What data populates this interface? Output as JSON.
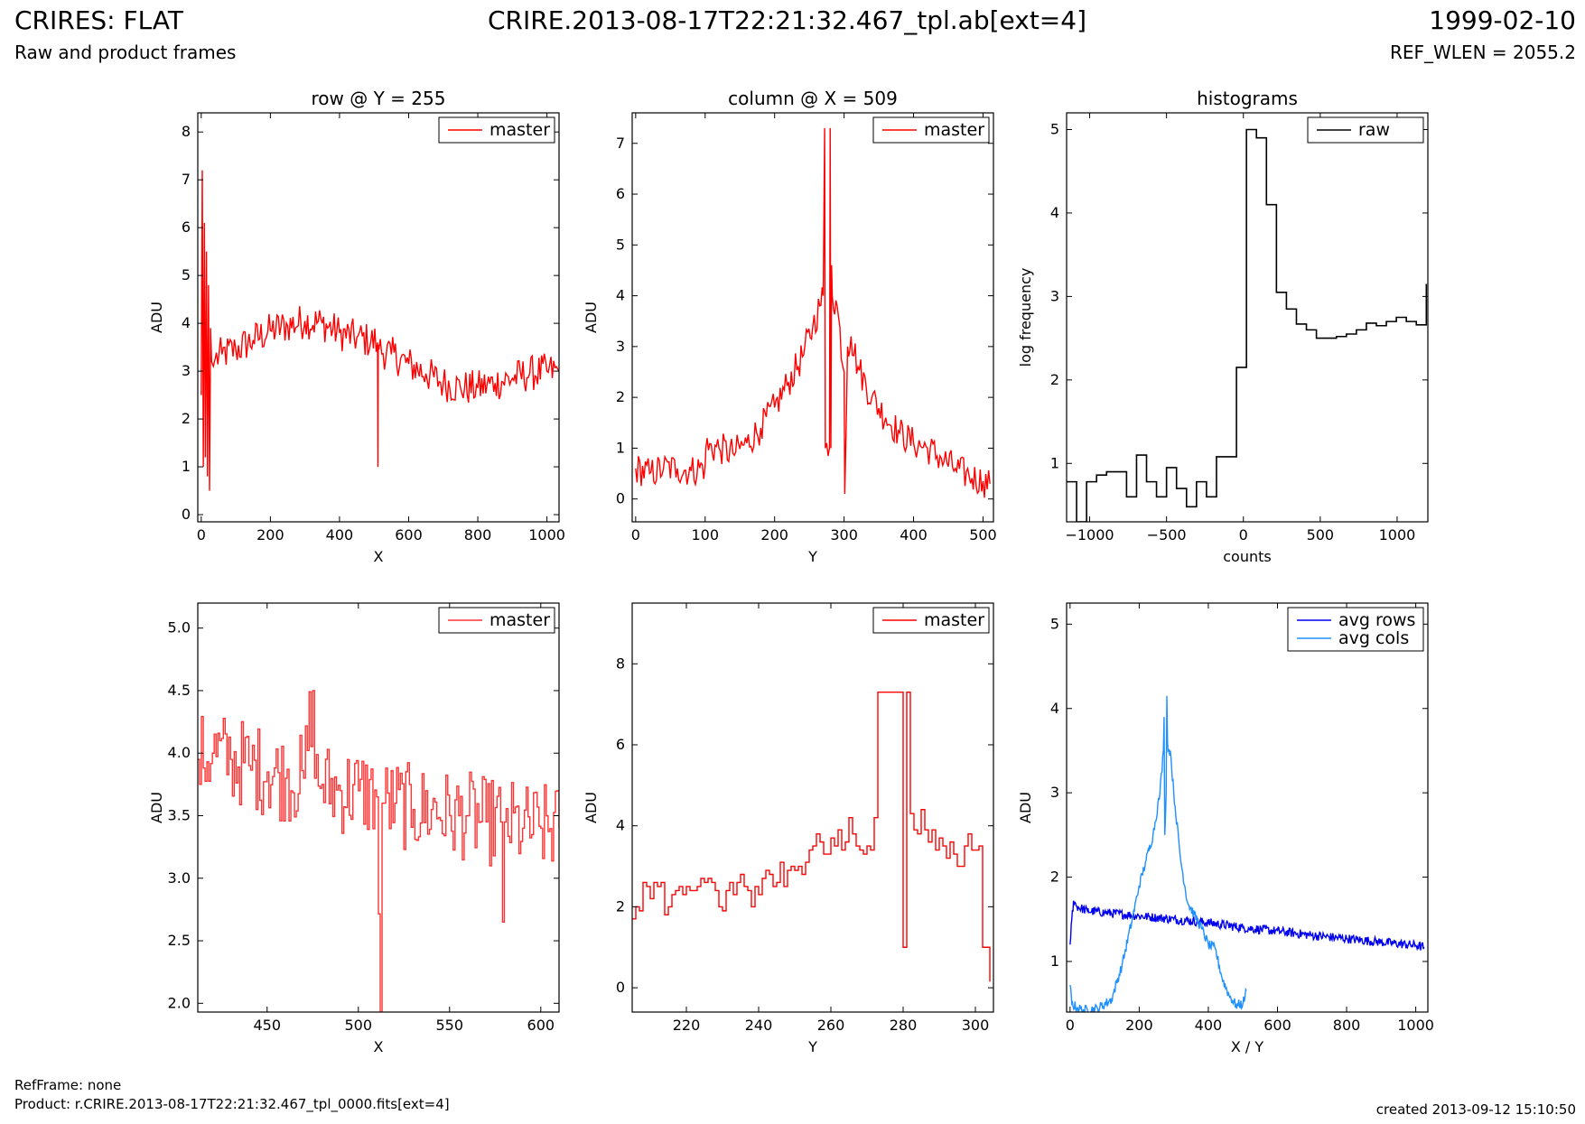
{
  "header": {
    "title_left": "CRIRES: FLAT",
    "title_center": "CRIRE.2013-08-17T22:21:32.467_tpl.ab[ext=4]",
    "title_right": "1999-02-10",
    "subtitle_left": "Raw and product frames",
    "subtitle_right": "REF_WLEN = 2055.2"
  },
  "footer": {
    "refframe": "RefFrame: none",
    "product": "Product: r.CRIRE.2013-08-17T22:21:32.467_tpl_0000.fits[ext=4]",
    "created": "created 2013-09-12 15:10:50"
  },
  "colors": {
    "red": "#ff0000",
    "light_red": "#ff3333",
    "blue": "#0000ee",
    "light_blue": "#1e90ff",
    "black": "#000000"
  },
  "chart_data": [
    {
      "type": "line",
      "title": "row @ Y = 255",
      "xlabel": "X",
      "ylabel": "ADU",
      "xlim": [
        -10,
        1035
      ],
      "ylim": [
        -0.15,
        8.4
      ],
      "xticks": [
        0,
        200,
        400,
        600,
        800,
        1000
      ],
      "yticks": [
        0,
        1,
        2,
        3,
        4,
        5,
        6,
        7,
        8
      ],
      "legend_loc": "top-right",
      "series": [
        {
          "name": "master",
          "color": "#ff0000",
          "noise": 0.38,
          "step": 4,
          "x": [
            0,
            3,
            6,
            9,
            12,
            15,
            18,
            21,
            24,
            27,
            30,
            35,
            40,
            60,
            100,
            150,
            200,
            250,
            300,
            350,
            400,
            450,
            510,
            511,
            512,
            513,
            514,
            550,
            600,
            650,
            700,
            750,
            800,
            850,
            900,
            950,
            1000,
            1035
          ],
          "y": [
            2.5,
            7.2,
            1.0,
            6.1,
            1.2,
            5.5,
            0.8,
            4.8,
            0.5,
            3.9,
            3.2,
            3.1,
            3.25,
            3.35,
            3.45,
            3.65,
            3.85,
            3.95,
            4.05,
            4.0,
            3.8,
            3.7,
            3.6,
            1.0,
            3.55,
            3.5,
            3.45,
            3.35,
            3.15,
            2.95,
            2.75,
            2.65,
            2.65,
            2.75,
            2.85,
            2.95,
            3.0,
            3.0
          ]
        }
      ]
    },
    {
      "type": "line",
      "title": "column @ X = 509",
      "xlabel": "Y",
      "ylabel": "ADU",
      "xlim": [
        -5,
        515
      ],
      "ylim": [
        -0.45,
        7.6
      ],
      "xticks": [
        0,
        100,
        200,
        300,
        400,
        500
      ],
      "yticks": [
        0,
        1,
        2,
        3,
        4,
        5,
        6,
        7
      ],
      "legend_loc": "top-right",
      "series": [
        {
          "name": "master",
          "color": "#ff0000",
          "noise": 0.32,
          "step": 2,
          "x": [
            0,
            20,
            40,
            60,
            80,
            100,
            101,
            120,
            140,
            160,
            180,
            200,
            220,
            240,
            255,
            265,
            270,
            272,
            273,
            279,
            280,
            281,
            282,
            283,
            290,
            300,
            301,
            305,
            310,
            320,
            340,
            360,
            380,
            400,
            420,
            440,
            460,
            480,
            500,
            510
          ],
          "y": [
            0.6,
            0.5,
            0.6,
            0.6,
            0.55,
            0.65,
            1.0,
            1.0,
            0.9,
            1.1,
            1.4,
            1.8,
            2.3,
            2.8,
            3.4,
            3.8,
            4.0,
            7.3,
            1.0,
            1.0,
            7.3,
            1.0,
            4.6,
            4.0,
            3.8,
            2.5,
            0.1,
            3.0,
            3.2,
            2.6,
            2.0,
            1.6,
            1.3,
            1.1,
            1.0,
            0.8,
            0.6,
            0.45,
            0.35,
            0.3
          ]
        }
      ]
    },
    {
      "type": "line",
      "title": "histograms",
      "xlabel": "counts",
      "ylabel": "log frequency",
      "xlim": [
        -1150,
        1200
      ],
      "ylim": [
        0.3,
        5.2
      ],
      "xticks": [
        -1000,
        -500,
        0,
        500,
        1000
      ],
      "yticks": [
        1,
        2,
        3,
        4,
        5
      ],
      "legend_loc": "top-right",
      "series": [
        {
          "name": "raw",
          "color": "#000000",
          "steps": true,
          "edges": [
            -1150,
            -1085,
            -1020,
            -955,
            -890,
            -825,
            -760,
            -695,
            -630,
            -565,
            -500,
            -435,
            -370,
            -305,
            -240,
            -175,
            -110,
            -45,
            20,
            85,
            150,
            215,
            280,
            345,
            410,
            475,
            540,
            605,
            670,
            735,
            800,
            865,
            930,
            995,
            1060,
            1125,
            1190
          ],
          "values": [
            0.78,
            0.3,
            0.78,
            0.86,
            0.9,
            0.9,
            0.6,
            1.1,
            0.78,
            0.6,
            0.95,
            0.7,
            0.48,
            0.78,
            0.6,
            1.08,
            1.08,
            2.15,
            5.0,
            4.9,
            4.1,
            3.05,
            2.85,
            2.67,
            2.6,
            2.5,
            2.5,
            2.52,
            2.55,
            2.6,
            2.68,
            2.65,
            2.7,
            2.75,
            2.7,
            2.66,
            3.15
          ]
        }
      ]
    },
    {
      "type": "line",
      "xlabel": "X",
      "ylabel": "ADU",
      "xlim": [
        412,
        610
      ],
      "ylim": [
        1.93,
        5.2
      ],
      "xticks": [
        450,
        500,
        550,
        600
      ],
      "yticks": [
        2.0,
        2.5,
        3.0,
        3.5,
        4.0,
        4.5,
        5.0
      ],
      "legend_loc": "top-right",
      "series": [
        {
          "name": "master",
          "color": "#ff3333",
          "noise": 0.36,
          "step": 1,
          "steps": true,
          "x": [
            412,
            420,
            430,
            440,
            450,
            460,
            470,
            475,
            476,
            480,
            490,
            500,
            510,
            512,
            513,
            514,
            520,
            530,
            540,
            550,
            560,
            570,
            578,
            579,
            580,
            590,
            600,
            610
          ],
          "y": [
            3.95,
            4.0,
            3.95,
            3.9,
            3.85,
            3.8,
            3.8,
            4.5,
            3.8,
            3.75,
            3.7,
            3.7,
            3.65,
            1.9,
            3.6,
            3.6,
            3.6,
            3.55,
            3.55,
            3.5,
            3.5,
            3.45,
            3.45,
            2.65,
            3.45,
            3.4,
            3.4,
            3.4
          ]
        }
      ]
    },
    {
      "type": "line",
      "xlabel": "Y",
      "ylabel": "ADU",
      "xlim": [
        205,
        305
      ],
      "ylim": [
        -0.6,
        9.5
      ],
      "xticks": [
        220,
        240,
        260,
        280,
        300
      ],
      "yticks": [
        0,
        2,
        4,
        6,
        8
      ],
      "legend_loc": "top-right",
      "series": [
        {
          "name": "master",
          "color": "#ff0000",
          "steps": true,
          "x": [
            205,
            206,
            207,
            208,
            209,
            210,
            211,
            212,
            213,
            214,
            215,
            216,
            217,
            218,
            219,
            220,
            221,
            222,
            223,
            224,
            225,
            226,
            227,
            228,
            229,
            230,
            231,
            232,
            233,
            234,
            235,
            236,
            237,
            238,
            239,
            240,
            241,
            242,
            243,
            244,
            245,
            246,
            247,
            248,
            249,
            250,
            251,
            252,
            253,
            254,
            255,
            256,
            257,
            258,
            259,
            260,
            261,
            262,
            263,
            264,
            265,
            266,
            267,
            268,
            269,
            270,
            271,
            272,
            273,
            280,
            281,
            282,
            283,
            284,
            285,
            286,
            287,
            288,
            289,
            290,
            291,
            292,
            293,
            294,
            295,
            296,
            297,
            298,
            299,
            300,
            301,
            302,
            303,
            304
          ],
          "y": [
            1.7,
            2.0,
            1.9,
            2.6,
            2.5,
            2.2,
            2.6,
            2.5,
            2.6,
            1.8,
            2.0,
            2.3,
            2.4,
            2.5,
            2.3,
            2.5,
            2.4,
            2.4,
            2.5,
            2.7,
            2.6,
            2.7,
            2.6,
            2.4,
            2.0,
            1.9,
            2.4,
            2.6,
            2.3,
            2.6,
            2.8,
            2.5,
            2.4,
            2.0,
            2.5,
            2.3,
            2.7,
            2.9,
            2.8,
            2.5,
            2.6,
            3.1,
            2.5,
            2.9,
            3.0,
            2.9,
            3.0,
            2.8,
            3.1,
            3.4,
            3.5,
            3.8,
            3.6,
            3.3,
            3.3,
            3.7,
            3.5,
            3.9,
            3.4,
            3.6,
            4.2,
            3.8,
            3.5,
            3.4,
            3.3,
            3.5,
            3.4,
            4.2,
            7.3,
            1.0,
            7.3,
            4.3,
            3.9,
            3.8,
            4.4,
            3.9,
            3.6,
            3.9,
            3.4,
            3.7,
            3.5,
            3.2,
            3.6,
            3.3,
            3.0,
            3.0,
            3.5,
            3.8,
            3.4,
            3.4,
            3.5,
            1.0,
            1.0,
            0.15
          ]
        }
      ]
    },
    {
      "type": "line",
      "xlabel": "X / Y",
      "ylabel": "ADU",
      "xlim": [
        -10,
        1035
      ],
      "ylim": [
        0.4,
        5.25
      ],
      "xticks": [
        0,
        200,
        400,
        600,
        800,
        1000
      ],
      "yticks": [
        1,
        2,
        3,
        4,
        5
      ],
      "legend_loc": "top-right",
      "series": [
        {
          "name": "avg rows",
          "color": "#0000ee",
          "noise": 0.055,
          "step": 2,
          "x": [
            0,
            5,
            10,
            20,
            50,
            100,
            200,
            300,
            400,
            500,
            600,
            700,
            800,
            900,
            1000,
            1024
          ],
          "y": [
            1.2,
            1.5,
            1.72,
            1.65,
            1.6,
            1.58,
            1.54,
            1.5,
            1.46,
            1.4,
            1.36,
            1.31,
            1.27,
            1.23,
            1.19,
            1.17
          ]
        },
        {
          "name": "avg cols",
          "color": "#1e90ff",
          "noise": 0.06,
          "step": 2,
          "x": [
            0,
            5,
            20,
            40,
            80,
            120,
            150,
            180,
            200,
            220,
            240,
            260,
            270,
            272,
            274,
            278,
            280,
            282,
            285,
            290,
            300,
            320,
            340,
            360,
            380,
            400,
            420,
            440,
            460,
            480,
            500,
            510
          ],
          "y": [
            0.72,
            0.5,
            0.45,
            0.42,
            0.44,
            0.55,
            0.95,
            1.5,
            1.9,
            2.2,
            2.5,
            3.0,
            3.5,
            3.9,
            2.5,
            3.0,
            4.15,
            3.6,
            3.5,
            3.5,
            3.0,
            2.2,
            1.7,
            1.55,
            1.4,
            1.2,
            1.15,
            0.8,
            0.6,
            0.48,
            0.5,
            0.65
          ]
        }
      ]
    }
  ]
}
